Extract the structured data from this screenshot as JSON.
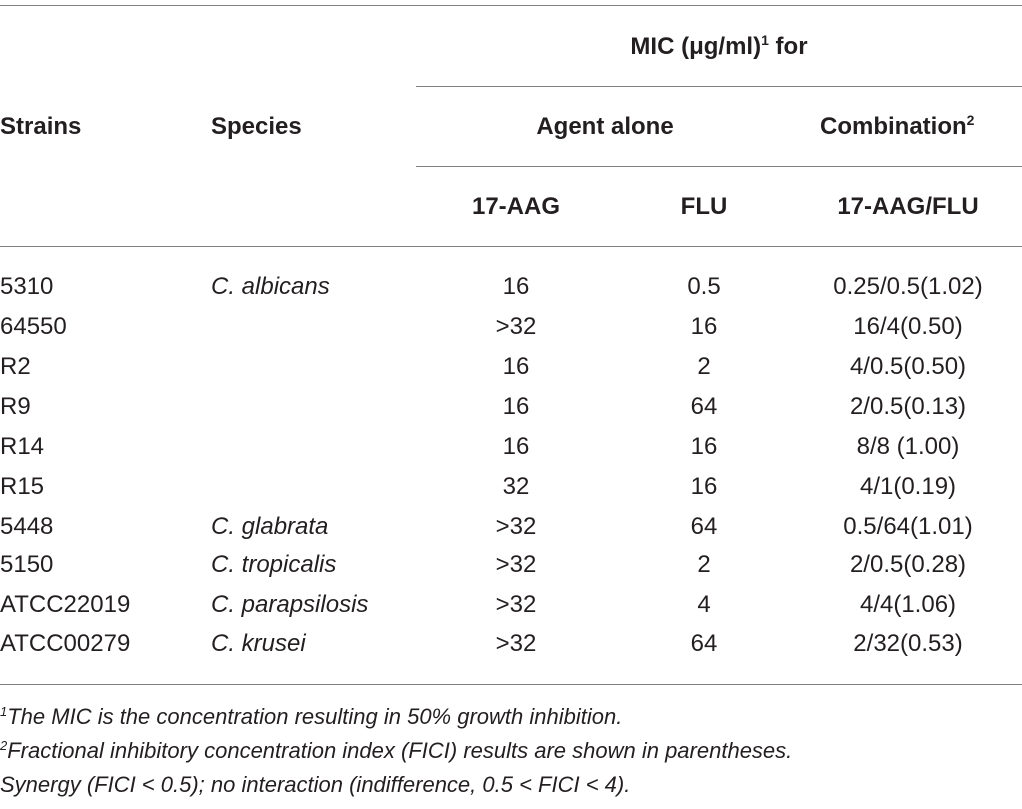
{
  "header": {
    "mic_prefix": "MIC (μg/ml)",
    "mic_sup": "1",
    "mic_suffix": " for",
    "strains": "Strains",
    "species": "Species",
    "agent_alone": "Agent alone",
    "combination": "Combination",
    "combination_sup": "2",
    "col_17aag": "17-AAG",
    "col_flu": "FLU",
    "col_combo": "17-AAG/FLU"
  },
  "rows": [
    {
      "strain": "5310",
      "species": "C. albicans",
      "aag": "16",
      "flu": "0.5",
      "combo": "0.25/0.5(1.02)"
    },
    {
      "strain": "64550",
      "species": "",
      "aag": ">32",
      "flu": "16",
      "combo": "16/4(0.50)"
    },
    {
      "strain": "R2",
      "species": "",
      "aag": "16",
      "flu": "2",
      "combo": "4/0.5(0.50)"
    },
    {
      "strain": "R9",
      "species": "",
      "aag": "16",
      "flu": "64",
      "combo": "2/0.5(0.13)"
    },
    {
      "strain": "R14",
      "species": "",
      "aag": "16",
      "flu": "16",
      "combo": "8/8 (1.00)"
    },
    {
      "strain": "R15",
      "species": "",
      "aag": "32",
      "flu": "16",
      "combo": "4/1(0.19)"
    },
    {
      "strain": "5448",
      "species": "C. glabrata",
      "aag": ">32",
      "flu": "64",
      "combo": "0.5/64(1.01)"
    },
    {
      "strain": "5150",
      "species": "C. tropicalis",
      "aag": ">32",
      "flu": "2",
      "combo": "2/0.5(0.28)"
    },
    {
      "strain": "ATCC22019",
      "species": "C. parapsilosis",
      "aag": ">32",
      "flu": "4",
      "combo": "4/4(1.06)"
    },
    {
      "strain": "ATCC00279",
      "species": "C. krusei",
      "aag": ">32",
      "flu": "64",
      "combo": "2/32(0.53)"
    }
  ],
  "footnotes": {
    "note1_marker": "1",
    "note1_text": "The MIC is the concentration resulting in 50% growth inhibition.",
    "note2_marker": "2",
    "note2_text": "Fractional inhibitory concentration index (FICI) results are shown in parentheses.",
    "note3_text": "Synergy (FICI < 0.5); no interaction (indifference, 0.5 < FICI < 4)."
  }
}
